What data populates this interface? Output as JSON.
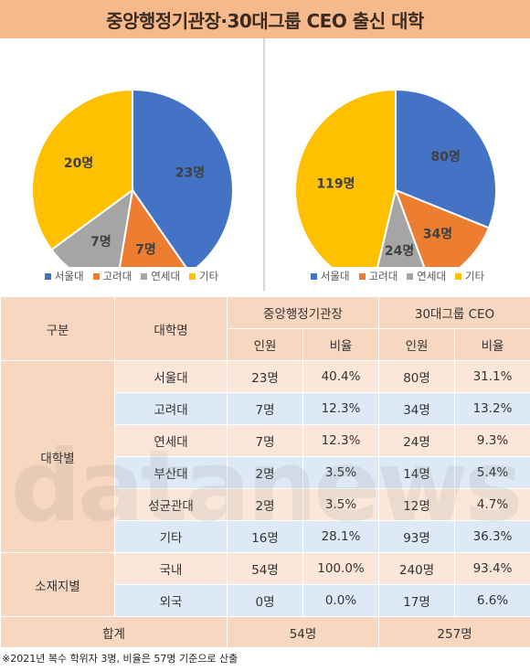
{
  "title": "중앙행정기관장·30대그룹 CEO 출신 대학",
  "colors": {
    "서울대": "#4472c4",
    "고려대": "#ed7d31",
    "연세대": "#a5a5a5",
    "기타": "#ffc000"
  },
  "chart_data": [
    {
      "type": "pie",
      "title": "",
      "categories": [
        "서울대",
        "고려대",
        "연세대",
        "기타"
      ],
      "values": [
        23,
        7,
        7,
        20
      ],
      "labels": [
        "23명",
        "7명",
        "7명",
        "20명"
      ],
      "legend": "bottom"
    },
    {
      "type": "pie",
      "title": "",
      "categories": [
        "서울대",
        "고려대",
        "연세대",
        "기타"
      ],
      "values": [
        80,
        34,
        24,
        119
      ],
      "labels": [
        "80명",
        "34명",
        "24명",
        "119명"
      ],
      "legend": "bottom"
    }
  ],
  "table": {
    "header": {
      "col1": "구분",
      "col2": "대학명",
      "group1": "중앙행정기관장",
      "group2": "30대그룹 CEO",
      "sub_count": "인원",
      "sub_ratio": "비율"
    },
    "groups": [
      {
        "label": "대학별",
        "rows": [
          {
            "name": "서울대",
            "c1": "23명",
            "r1": "40.4%",
            "c2": "80명",
            "r2": "31.1%"
          },
          {
            "name": "고려대",
            "c1": "7명",
            "r1": "12.3%",
            "c2": "34명",
            "r2": "13.2%"
          },
          {
            "name": "연세대",
            "c1": "7명",
            "r1": "12.3%",
            "c2": "24명",
            "r2": "9.3%"
          },
          {
            "name": "부산대",
            "c1": "2명",
            "r1": "3.5%",
            "c2": "14명",
            "r2": "5.4%"
          },
          {
            "name": "성균관대",
            "c1": "2명",
            "r1": "3.5%",
            "c2": "12명",
            "r2": "4.7%"
          },
          {
            "name": "기타",
            "c1": "16명",
            "r1": "28.1%",
            "c2": "93명",
            "r2": "36.3%"
          }
        ]
      },
      {
        "label": "소재지별",
        "rows": [
          {
            "name": "국내",
            "c1": "54명",
            "r1": "100.0%",
            "c2": "240명",
            "r2": "93.4%"
          },
          {
            "name": "외국",
            "c1": "0명",
            "r1": "0.0%",
            "c2": "17명",
            "r2": "6.6%"
          }
        ]
      }
    ],
    "total": {
      "label": "합계",
      "v1": "54명",
      "v2": "257명"
    }
  },
  "footnote": "※2021년 복수 학위자 3명, 비율은 57명 기준으로 산출",
  "watermark": "datanews"
}
